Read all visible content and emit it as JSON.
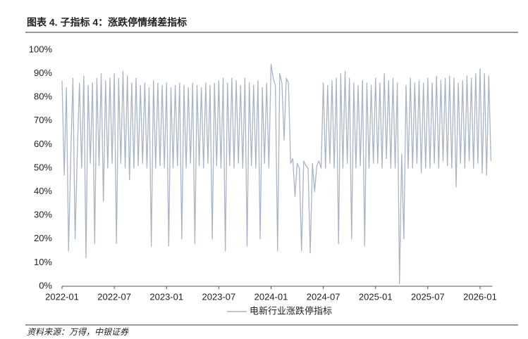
{
  "chart_data": {
    "type": "line",
    "title": "图表 4. 子指标 4：涨跌停情绪差指标",
    "source": "资料来源：万得，中银证券",
    "categories": [
      "2022-01",
      null,
      null,
      null,
      null,
      null,
      null,
      null,
      null,
      null,
      null,
      null,
      null,
      null,
      null,
      null,
      null,
      null,
      null,
      null,
      null,
      null,
      null,
      null,
      "2022-07",
      null,
      null,
      null,
      null,
      null,
      null,
      null,
      null,
      null,
      null,
      null,
      null,
      null,
      null,
      null,
      null,
      null,
      null,
      null,
      null,
      null,
      null,
      null,
      "2023-01",
      null,
      null,
      null,
      null,
      null,
      null,
      null,
      null,
      null,
      null,
      null,
      null,
      null,
      null,
      null,
      null,
      null,
      null,
      null,
      null,
      null,
      null,
      null,
      "2023-07",
      null,
      null,
      null,
      null,
      null,
      null,
      null,
      null,
      null,
      null,
      null,
      null,
      null,
      null,
      null,
      null,
      null,
      null,
      null,
      null,
      null,
      null,
      null,
      "2024-01",
      null,
      null,
      null,
      null,
      null,
      null,
      null,
      null,
      null,
      null,
      null,
      null,
      null,
      null,
      null,
      null,
      null,
      null,
      null,
      null,
      null,
      null,
      null,
      "2024-07",
      null,
      null,
      null,
      null,
      null,
      null,
      null,
      null,
      null,
      null,
      null,
      null,
      null,
      null,
      null,
      null,
      null,
      null,
      null,
      null,
      null,
      null,
      null,
      "2025-01",
      null,
      null,
      null,
      null,
      null,
      null,
      null,
      null,
      null,
      null,
      null,
      null,
      null,
      null,
      null,
      null,
      null,
      null,
      null,
      null,
      null,
      null,
      null,
      "2025-07",
      null,
      null,
      null,
      null,
      null,
      null,
      null,
      null,
      null,
      null,
      null,
      null,
      null,
      null,
      null,
      null,
      null,
      null,
      null,
      null,
      null,
      null,
      null,
      "2026-01",
      null,
      null,
      null,
      null,
      null
    ],
    "series": [
      {
        "name": "电新行业涨跌停指标",
        "color": "#a9b4c7",
        "values": [
          87,
          47,
          84,
          15,
          55,
          88,
          20,
          56,
          86,
          50,
          89,
          12,
          85,
          52,
          86,
          18,
          88,
          51,
          90,
          36,
          87,
          50,
          88,
          52,
          90,
          18,
          88,
          52,
          91,
          50,
          89,
          45,
          86,
          50,
          88,
          51,
          85,
          52,
          86,
          50,
          84,
          17,
          87,
          50,
          86,
          51,
          85,
          50,
          86,
          17,
          84,
          50,
          85,
          51,
          86,
          20,
          85,
          50,
          84,
          52,
          86,
          18,
          85,
          51,
          84,
          50,
          86,
          52,
          85,
          20,
          86,
          51,
          87,
          50,
          88,
          15,
          86,
          51,
          88,
          50,
          87,
          52,
          85,
          50,
          88,
          17,
          86,
          51,
          85,
          50,
          87,
          20,
          84,
          52,
          86,
          50,
          94,
          88,
          85,
          15,
          90,
          86,
          62,
          88,
          86,
          52,
          54,
          38,
          52,
          50,
          15,
          53,
          51,
          50,
          14,
          52,
          40,
          51,
          53,
          50,
          86,
          50,
          85,
          52,
          87,
          50,
          88,
          18,
          90,
          50,
          91,
          52,
          88,
          20,
          86,
          50,
          85,
          51,
          87,
          17,
          86,
          50,
          85,
          52,
          88,
          52,
          86,
          50,
          90,
          54,
          87,
          50,
          88,
          50,
          86,
          1,
          56,
          20,
          85,
          50,
          88,
          50,
          86,
          52,
          87,
          48,
          86,
          50,
          88,
          50,
          86,
          52,
          89,
          50,
          87,
          53,
          88,
          51,
          89,
          50,
          88,
          42,
          86,
          52,
          87,
          50,
          89,
          53,
          88,
          50,
          90,
          52,
          92,
          48,
          90,
          47,
          89,
          53
        ]
      }
    ],
    "ylim": [
      0,
      100
    ],
    "yticks": [
      {
        "value": 0,
        "label": "0%"
      },
      {
        "value": 10,
        "label": "10%"
      },
      {
        "value": 20,
        "label": "20%"
      },
      {
        "value": 30,
        "label": "30%"
      },
      {
        "value": 40,
        "label": "40%"
      },
      {
        "value": 50,
        "label": "50%"
      },
      {
        "value": 60,
        "label": "60%"
      },
      {
        "value": 70,
        "label": "70%"
      },
      {
        "value": 80,
        "label": "80%"
      },
      {
        "value": 90,
        "label": "90%"
      },
      {
        "value": 100,
        "label": "100%"
      }
    ],
    "grid": false
  }
}
